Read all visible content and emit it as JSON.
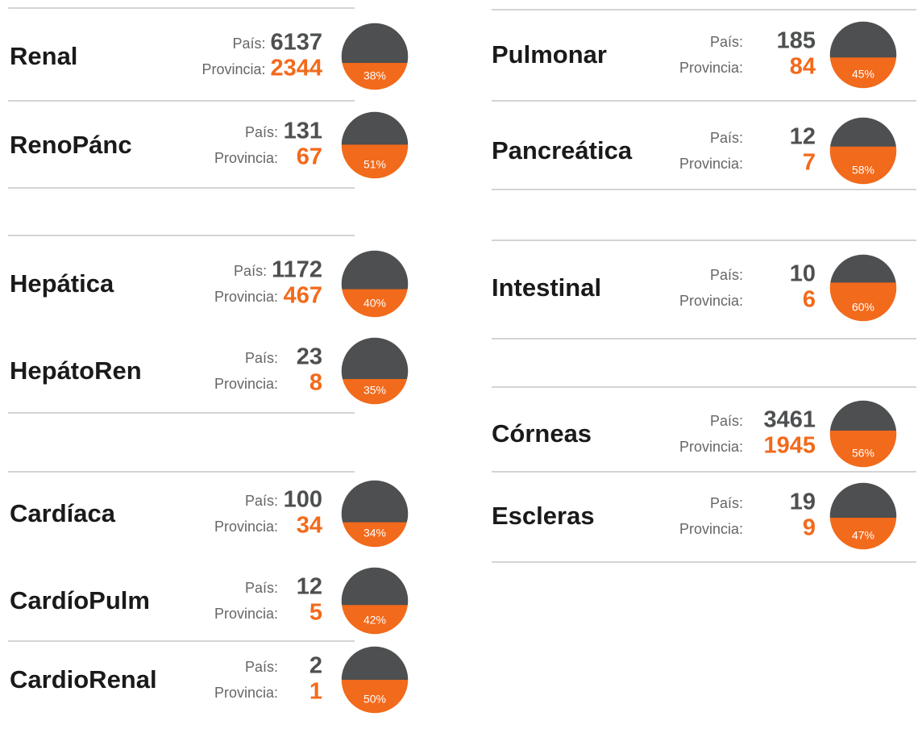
{
  "labels": {
    "country": "País:",
    "province": "Provincia:"
  },
  "items": [
    {
      "name": "Renal",
      "country": 6137,
      "province": 2344,
      "percent": 38,
      "percent_label": "38%"
    },
    {
      "name": "RenoPánc",
      "country": 131,
      "province": 67,
      "percent": 51,
      "percent_label": "51%"
    },
    {
      "name": "Hepática",
      "country": 1172,
      "province": 467,
      "percent": 40,
      "percent_label": "40%"
    },
    {
      "name": "HepátoRen",
      "country": 23,
      "province": 8,
      "percent": 35,
      "percent_label": "35%"
    },
    {
      "name": "Cardíaca",
      "country": 100,
      "province": 34,
      "percent": 34,
      "percent_label": "34%"
    },
    {
      "name": "CardíoPulm",
      "country": 12,
      "province": 5,
      "percent": 42,
      "percent_label": "42%"
    },
    {
      "name": "CardioRenal",
      "country": 2,
      "province": 1,
      "percent": 50,
      "percent_label": "50%"
    },
    {
      "name": "Pulmonar",
      "country": 185,
      "province": 84,
      "percent": 45,
      "percent_label": "45%"
    },
    {
      "name": "Pancreática",
      "country": 12,
      "province": 7,
      "percent": 58,
      "percent_label": "58%"
    },
    {
      "name": "Intestinal",
      "country": 10,
      "province": 6,
      "percent": 60,
      "percent_label": "60%"
    },
    {
      "name": "Córneas",
      "country": 3461,
      "province": 1945,
      "percent": 56,
      "percent_label": "56%"
    },
    {
      "name": "Escleras",
      "country": 19,
      "province": 9,
      "percent": 47,
      "percent_label": "47%"
    }
  ]
}
